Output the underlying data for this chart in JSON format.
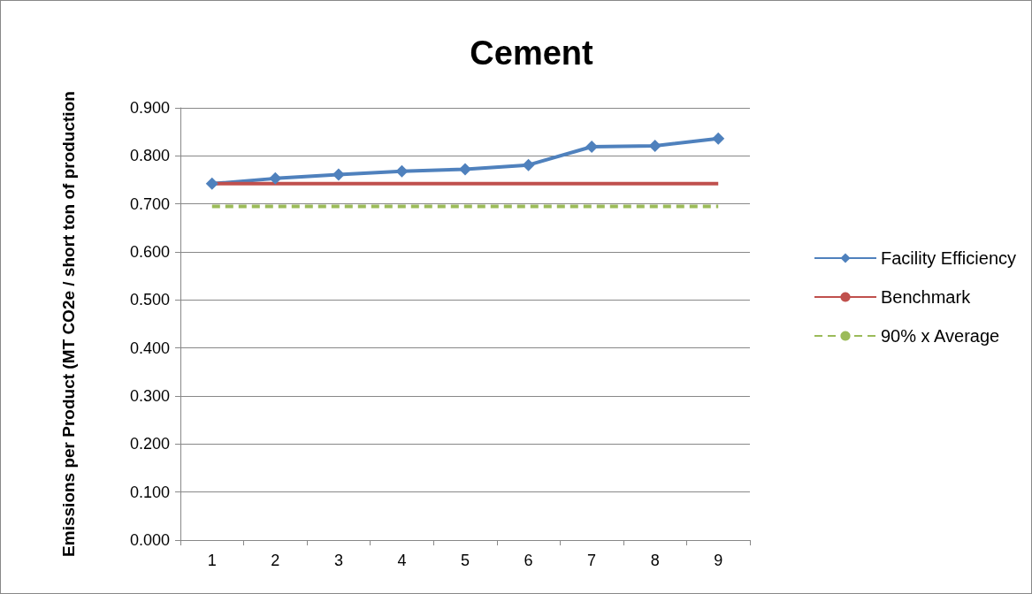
{
  "chart_data": {
    "type": "line",
    "title": "Cement",
    "ylabel": "Emissions per Product (MT CO2e / short ton of production",
    "categories": [
      "1",
      "2",
      "3",
      "4",
      "5",
      "6",
      "7",
      "8",
      "9"
    ],
    "series": [
      {
        "name": "Facility Efficiency",
        "color": "#4f81bd",
        "marker": "diamond",
        "line_style": "solid",
        "values": [
          0.742,
          0.753,
          0.761,
          0.768,
          0.772,
          0.781,
          0.819,
          0.821,
          0.836
        ]
      },
      {
        "name": "Benchmark",
        "color": "#c0504d",
        "marker": "none",
        "line_style": "solid",
        "values": [
          0.742,
          0.742,
          0.742,
          0.742,
          0.742,
          0.742,
          0.742,
          0.742,
          0.742
        ]
      },
      {
        "name": "90% x Average",
        "color": "#9bbb59",
        "marker": "none",
        "line_style": "dashed",
        "values": [
          0.695,
          0.695,
          0.695,
          0.695,
          0.695,
          0.695,
          0.695,
          0.695,
          0.695
        ]
      }
    ],
    "ylim": [
      0,
      0.9
    ],
    "yticks": [
      {
        "value": 0,
        "label": "0.000"
      },
      {
        "value": 0.1,
        "label": "0.100"
      },
      {
        "value": 0.2,
        "label": "0.200"
      },
      {
        "value": 0.3,
        "label": "0.300"
      },
      {
        "value": 0.4,
        "label": "0.400"
      },
      {
        "value": 0.5,
        "label": "0.500"
      },
      {
        "value": 0.6,
        "label": "0.600"
      },
      {
        "value": 0.7,
        "label": "0.700"
      },
      {
        "value": 0.8,
        "label": "0.800"
      },
      {
        "value": 0.9,
        "label": "0.900"
      }
    ],
    "grid": "y",
    "legend": "right"
  }
}
